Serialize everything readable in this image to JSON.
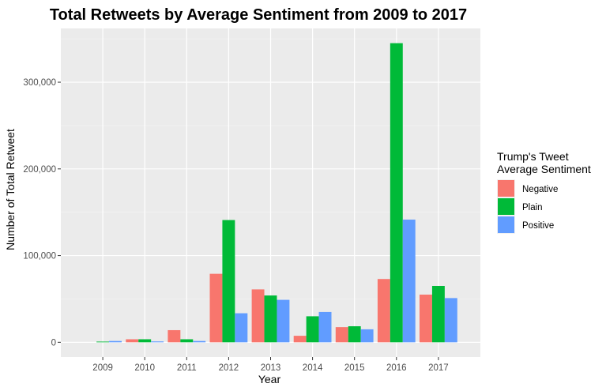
{
  "chart_data": {
    "type": "bar",
    "title": "Total Retweets by Average Sentiment from 2009 to 2017",
    "xlabel": "Year",
    "ylabel": "Number of Total Retweet",
    "categories": [
      "2009",
      "2010",
      "2011",
      "2012",
      "2013",
      "2014",
      "2015",
      "2016",
      "2017"
    ],
    "yticks": [
      0,
      100000,
      200000,
      300000
    ],
    "ytick_labels": [
      "0",
      "100,000",
      "200,000",
      "300,000"
    ],
    "ylim": [
      -17000,
      362000
    ],
    "grid": true,
    "legend": {
      "title_lines": [
        "Trump's Tweet",
        "Average Sentiment"
      ],
      "placement": "right"
    },
    "series": [
      {
        "name": "Negative",
        "color": "#F8766D",
        "values": [
          0,
          3500,
          14000,
          79000,
          61000,
          7500,
          17500,
          73000,
          55000
        ]
      },
      {
        "name": "Plain",
        "color": "#00BA38",
        "values": [
          800,
          3500,
          3500,
          141000,
          54000,
          30000,
          18500,
          345000,
          65000
        ]
      },
      {
        "name": "Positive",
        "color": "#619CFF",
        "values": [
          1500,
          1000,
          1500,
          33500,
          49000,
          35000,
          15000,
          141500,
          51000
        ]
      }
    ]
  }
}
